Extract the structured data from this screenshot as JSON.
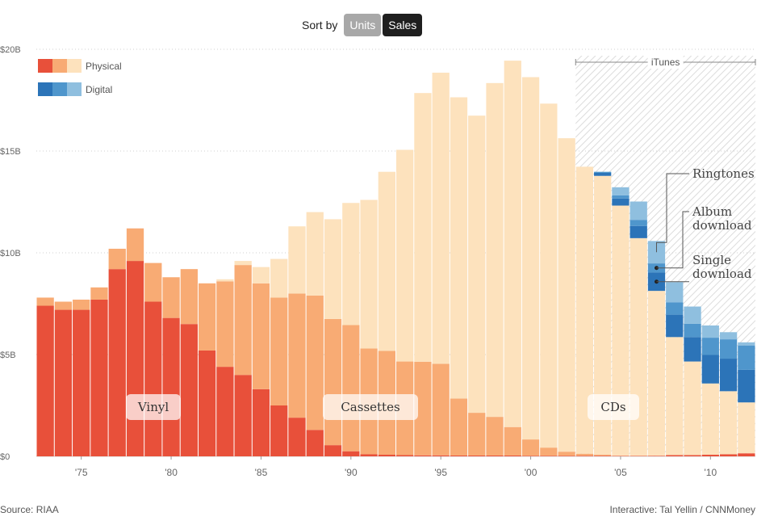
{
  "controls": {
    "sort_label": "Sort by",
    "units_label": "Units",
    "sales_label": "Sales",
    "active": "Sales"
  },
  "source": "Source: RIAA",
  "credit": "Interactive: Tal Yellin / CNNMoney",
  "colors": {
    "vinyl": "#e8503a",
    "cassettes": "#f8ab74",
    "cds": "#fde2bd",
    "ringtones": "#8fbfdf",
    "album_download": "#4f96cc",
    "single_download": "#2c74b8",
    "itunes_hatch": "#d8d8d8"
  },
  "chart_data": {
    "type": "bar",
    "stacked": true,
    "x": [
      1973,
      1974,
      1975,
      1976,
      1977,
      1978,
      1979,
      1980,
      1981,
      1982,
      1983,
      1984,
      1985,
      1986,
      1987,
      1988,
      1989,
      1990,
      1991,
      1992,
      1993,
      1994,
      1995,
      1996,
      1997,
      1998,
      1999,
      2000,
      2001,
      2002,
      2003,
      2004,
      2005,
      2006,
      2007,
      2008,
      2009,
      2010,
      2011,
      2012
    ],
    "x_ticks": [
      1975,
      1980,
      1985,
      1990,
      1995,
      2000,
      2005,
      2010
    ],
    "x_tick_labels": [
      "'75",
      "'80",
      "'85",
      "'90",
      "'95",
      "'00",
      "'05",
      "'10"
    ],
    "ylim": [
      0,
      20
    ],
    "y_ticks": [
      0,
      5,
      10,
      15,
      20
    ],
    "y_tick_labels": [
      "$0",
      "$5B",
      "$10B",
      "$15B",
      "$20B"
    ],
    "series": [
      {
        "key": "vinyl",
        "values": [
          7.4,
          7.2,
          7.2,
          7.7,
          9.2,
          9.6,
          7.6,
          6.8,
          6.5,
          5.2,
          4.4,
          4.0,
          3.3,
          2.5,
          1.9,
          1.3,
          0.55,
          0.25,
          0.1,
          0.08,
          0.06,
          0.05,
          0.05,
          0.04,
          0.04,
          0.04,
          0.04,
          0.03,
          0.03,
          0.03,
          0.03,
          0.03,
          0.02,
          0.02,
          0.03,
          0.06,
          0.06,
          0.08,
          0.1,
          0.15
        ]
      },
      {
        "key": "cassettes",
        "values": [
          0.4,
          0.4,
          0.5,
          0.6,
          1.0,
          1.6,
          1.9,
          2.0,
          2.7,
          3.3,
          4.2,
          5.4,
          5.2,
          5.3,
          6.1,
          6.6,
          6.2,
          6.2,
          5.2,
          5.1,
          4.6,
          4.6,
          4.5,
          2.8,
          2.1,
          1.9,
          1.4,
          0.8,
          0.4,
          0.2,
          0.1,
          0.05,
          0.0,
          0.0,
          0.0,
          0.0,
          0.0,
          0.0,
          0.0,
          0.0
        ]
      },
      {
        "key": "cds",
        "values": [
          0,
          0,
          0,
          0,
          0,
          0,
          0,
          0,
          0,
          0,
          0.1,
          0.2,
          0.8,
          1.9,
          3.3,
          4.1,
          4.9,
          6.0,
          7.3,
          8.8,
          10.4,
          13.2,
          14.3,
          14.8,
          14.6,
          16.4,
          18.0,
          17.8,
          16.9,
          15.4,
          14.1,
          13.7,
          12.3,
          10.7,
          8.1,
          5.8,
          4.6,
          3.5,
          3.1,
          2.5
        ]
      },
      {
        "key": "single_download",
        "values": [
          0,
          0,
          0,
          0,
          0,
          0,
          0,
          0,
          0,
          0,
          0,
          0,
          0,
          0,
          0,
          0,
          0,
          0,
          0,
          0,
          0,
          0,
          0,
          0,
          0,
          0,
          0,
          0,
          0,
          0,
          0,
          0.15,
          0.35,
          0.6,
          0.9,
          1.1,
          1.2,
          1.4,
          1.6,
          1.6
        ]
      },
      {
        "key": "album_download",
        "values": [
          0,
          0,
          0,
          0,
          0,
          0,
          0,
          0,
          0,
          0,
          0,
          0,
          0,
          0,
          0,
          0,
          0,
          0,
          0,
          0,
          0,
          0,
          0,
          0,
          0,
          0,
          0,
          0,
          0,
          0,
          0,
          0.05,
          0.15,
          0.3,
          0.45,
          0.6,
          0.65,
          0.85,
          0.95,
          1.2
        ]
      },
      {
        "key": "ringtones",
        "values": [
          0,
          0,
          0,
          0,
          0,
          0,
          0,
          0,
          0,
          0,
          0,
          0,
          0,
          0,
          0,
          0,
          0,
          0,
          0,
          0,
          0,
          0,
          0,
          0,
          0,
          0,
          0,
          0,
          0,
          0,
          0,
          0,
          0.4,
          0.9,
          1.1,
          1.0,
          0.85,
          0.6,
          0.35,
          0.15
        ]
      }
    ],
    "legend": [
      {
        "key": "physical",
        "label": "Physical"
      },
      {
        "key": "digital",
        "label": "Digital"
      }
    ],
    "legend_position": "top-left",
    "annotations": {
      "vinyl": "Vinyl",
      "cassettes": "Cassettes",
      "cds": "CDs",
      "itunes": "iTunes",
      "itunes_range": [
        2003,
        2012
      ],
      "ringtones": "Ringtones",
      "album_download": [
        "Album",
        "download"
      ],
      "single_download": [
        "Single",
        "download"
      ]
    },
    "grid": "horizontal-dotted"
  }
}
